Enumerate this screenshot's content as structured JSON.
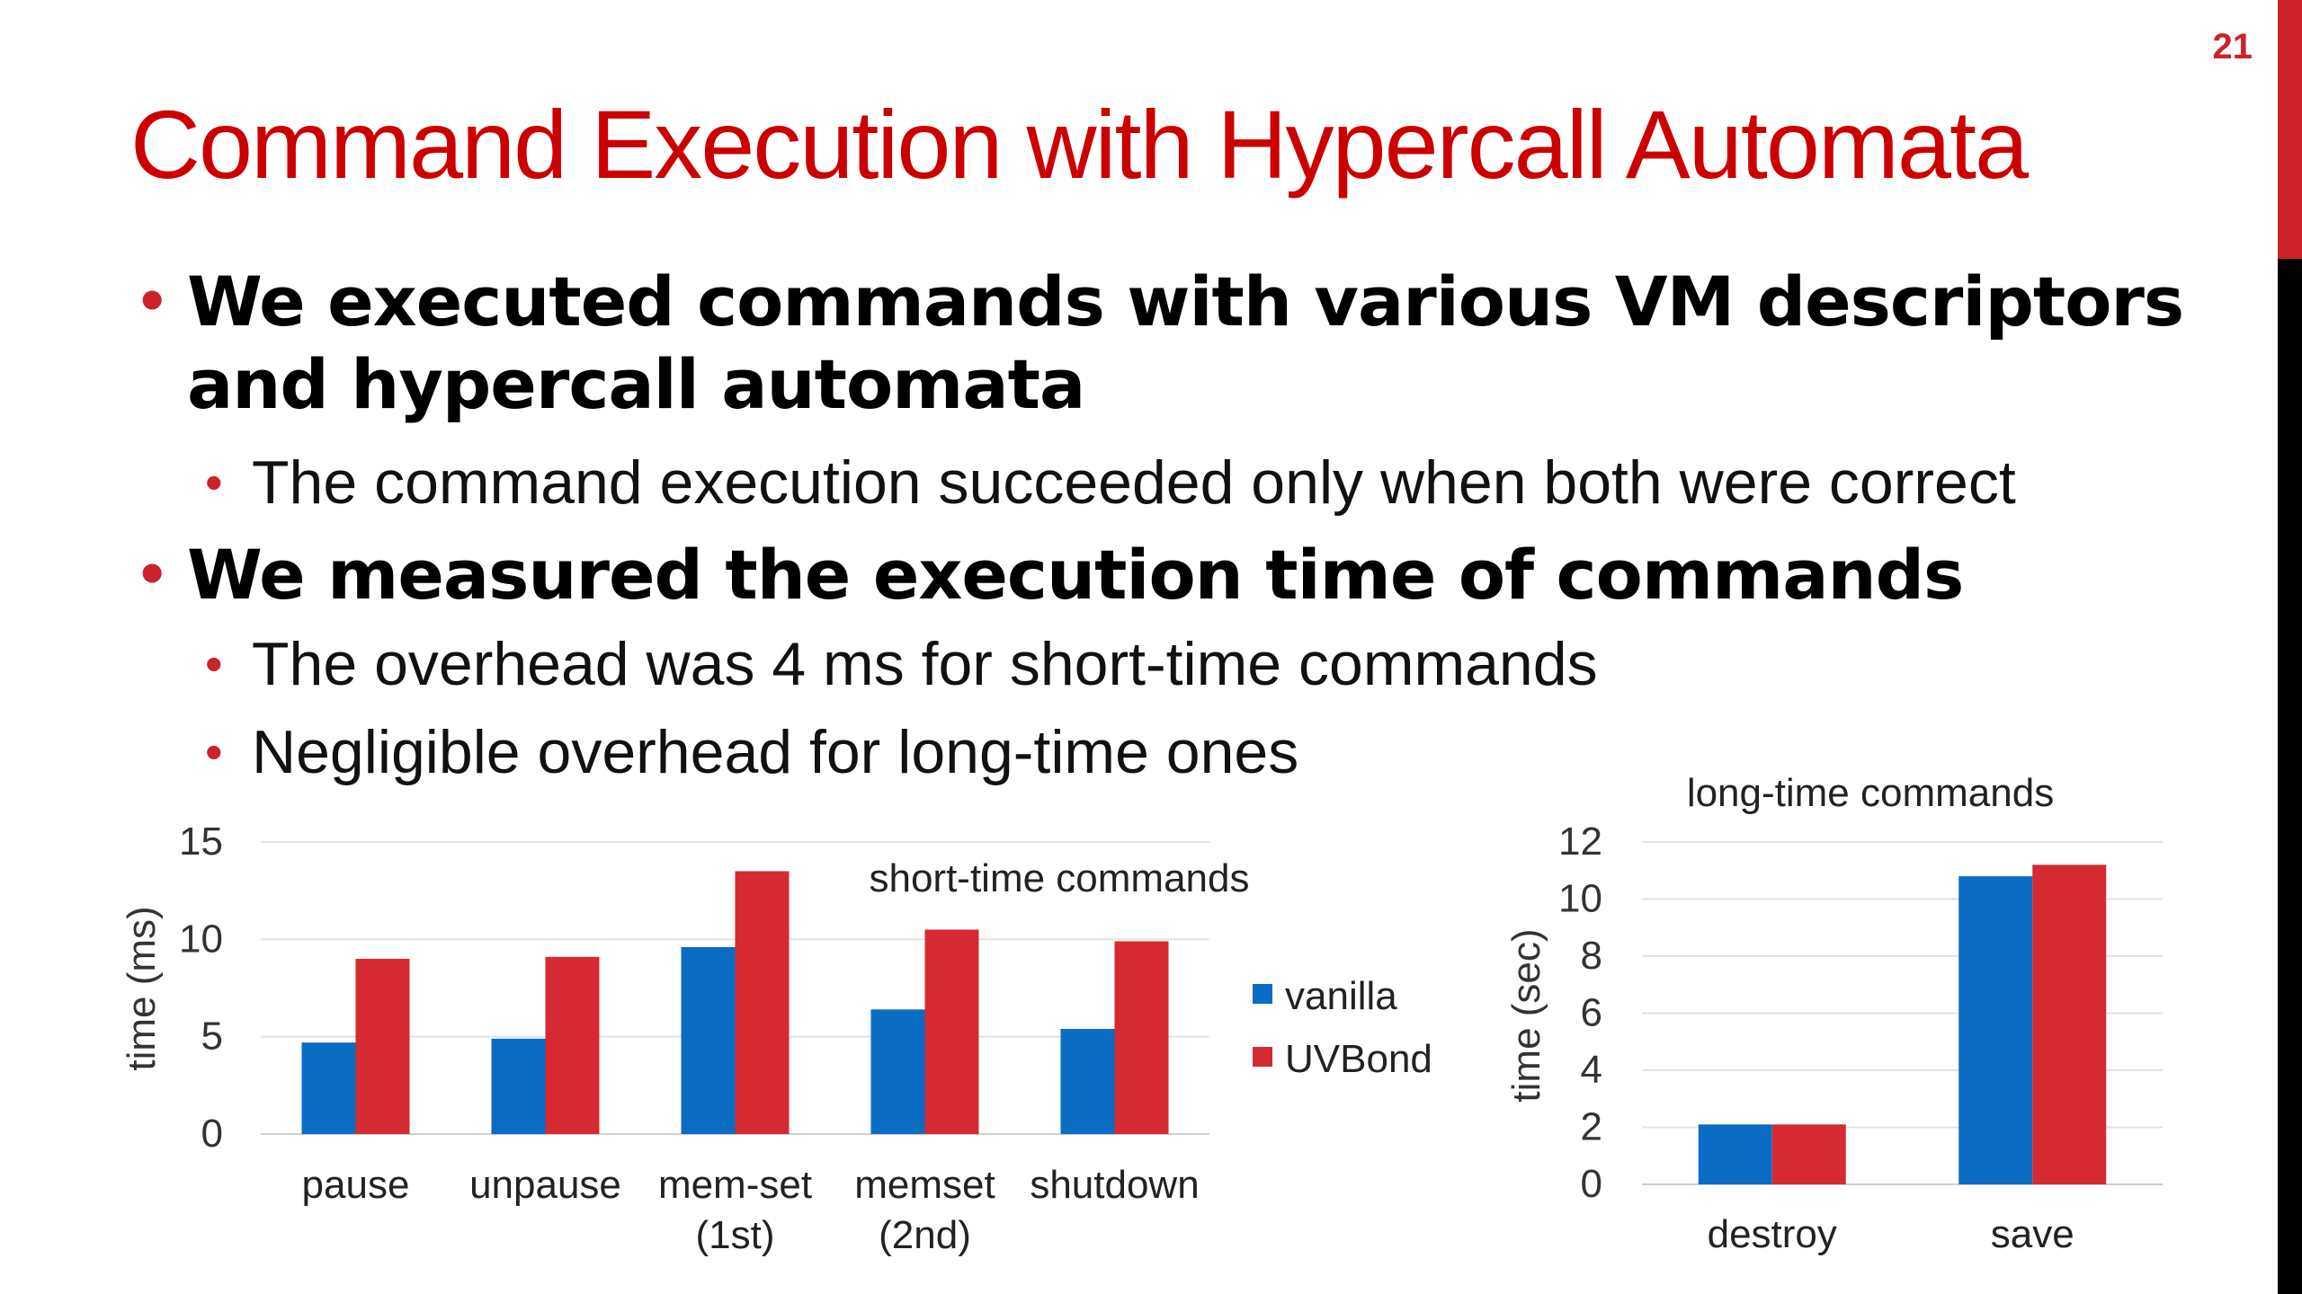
{
  "slide": {
    "page_number": "21",
    "title": "Command Execution with Hypercall Automata",
    "bullets": [
      {
        "text": "We executed commands with various VM descriptors and hypercall automata",
        "sub": [
          "The command execution succeeded only when both were correct"
        ]
      },
      {
        "text": "We measured the execution time of commands",
        "sub": [
          "The overhead was 4 ms for short-time commands",
          "Negligible overhead for long-time ones"
        ]
      }
    ],
    "bullet_glyph": "•",
    "colors": {
      "accent": "#cc2229",
      "title": "#cc0000",
      "vanilla": "#0b6cc4",
      "uvbond": "#d52a32"
    }
  },
  "chart_data": [
    {
      "type": "bar",
      "title": "short-time commands",
      "xlabel": "",
      "ylabel": "time (ms)",
      "ylim": [
        0,
        15
      ],
      "yticks": [
        "0",
        "5",
        "10",
        "15"
      ],
      "grid": true,
      "legend": "right",
      "categories": [
        [
          "pause"
        ],
        [
          "unpause"
        ],
        [
          "mem-set",
          "(1st)"
        ],
        [
          "memset",
          "(2nd)"
        ],
        [
          "shutdown"
        ]
      ],
      "series": [
        {
          "name": "vanilla",
          "values": [
            4.7,
            4.9,
            9.6,
            6.4,
            5.4
          ]
        },
        {
          "name": "UVBond",
          "values": [
            9.0,
            9.1,
            13.5,
            10.5,
            9.9
          ]
        }
      ]
    },
    {
      "type": "bar",
      "title": "long-time commands",
      "xlabel": "",
      "ylabel": "time (sec)",
      "ylim": [
        0,
        12
      ],
      "yticks": [
        "0",
        "2",
        "4",
        "6",
        "8",
        "10",
        "12"
      ],
      "grid": true,
      "legend": "none",
      "categories": [
        [
          "destroy"
        ],
        [
          "save"
        ]
      ],
      "series": [
        {
          "name": "vanilla",
          "values": [
            2.1,
            10.8
          ]
        },
        {
          "name": "UVBond",
          "values": [
            2.1,
            11.2
          ]
        }
      ]
    }
  ]
}
